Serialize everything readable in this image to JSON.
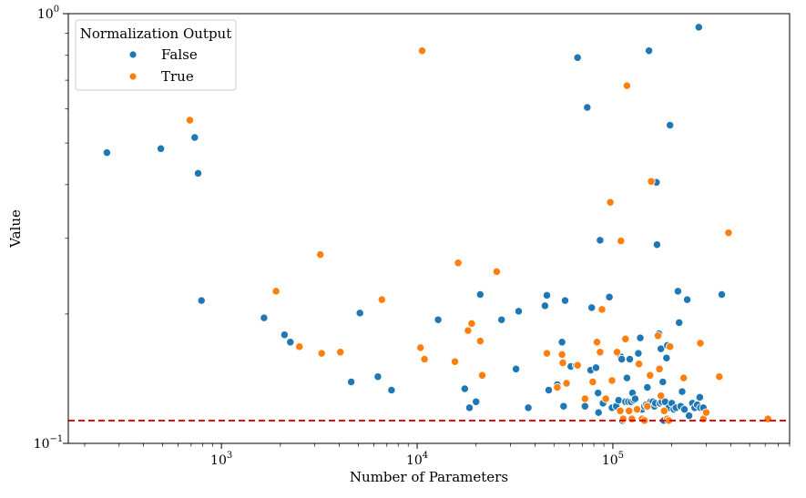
{
  "chart_data": {
    "type": "scatter",
    "title": "",
    "xlabel": "Number of Parameters",
    "ylabel": "Value",
    "xscale": "log",
    "yscale": "log",
    "xlim": [
      165,
      800000
    ],
    "ylim": [
      0.1,
      1.0
    ],
    "x_ticks": [
      {
        "base": "10",
        "exp": "3",
        "value": 1000
      },
      {
        "base": "10",
        "exp": "4",
        "value": 10000
      },
      {
        "base": "10",
        "exp": "5",
        "value": 100000
      }
    ],
    "y_ticks": [
      {
        "base": "10",
        "exp": "−1",
        "value": 0.1
      },
      {
        "base": "10",
        "exp": "0",
        "value": 1.0
      }
    ],
    "grid": false,
    "legend": {
      "title": "Normalization Output",
      "position": "top-left"
    },
    "reference_line": {
      "y": 0.113,
      "color": "#e00000",
      "style": "dashed"
    },
    "series": [
      {
        "name": "False",
        "color": "#1f77b4",
        "points": [
          [
            260,
            0.475
          ],
          [
            490,
            0.485
          ],
          [
            730,
            0.515
          ],
          [
            760,
            0.425
          ],
          [
            790,
            0.215
          ],
          [
            1650,
            0.196
          ],
          [
            2100,
            0.179
          ],
          [
            2250,
            0.172
          ],
          [
            4600,
            0.139
          ],
          [
            5100,
            0.201
          ],
          [
            6300,
            0.143
          ],
          [
            7400,
            0.133
          ],
          [
            12800,
            0.194
          ],
          [
            17500,
            0.134
          ],
          [
            18500,
            0.121
          ],
          [
            20000,
            0.125
          ],
          [
            21000,
            0.222
          ],
          [
            27000,
            0.194
          ],
          [
            32000,
            0.149
          ],
          [
            33000,
            0.203
          ],
          [
            37000,
            0.121
          ],
          [
            45000,
            0.209
          ],
          [
            46000,
            0.221
          ],
          [
            47000,
            0.133
          ],
          [
            52000,
            0.137
          ],
          [
            55000,
            0.172
          ],
          [
            56000,
            0.122
          ],
          [
            57000,
            0.215
          ],
          [
            61000,
            0.151
          ],
          [
            65000,
            0.152
          ],
          [
            66000,
            0.79
          ],
          [
            72000,
            0.122
          ],
          [
            74000,
            0.605
          ],
          [
            77000,
            0.148
          ],
          [
            78000,
            0.207
          ],
          [
            82000,
            0.15
          ],
          [
            84000,
            0.131
          ],
          [
            84500,
            0.118
          ],
          [
            86000,
            0.297
          ],
          [
            89000,
            0.124
          ],
          [
            96000,
            0.219
          ],
          [
            99000,
            0.121
          ],
          [
            104000,
            0.122
          ],
          [
            107000,
            0.126
          ],
          [
            110000,
            0.159
          ],
          [
            111000,
            0.157
          ],
          [
            112000,
            0.113
          ],
          [
            116000,
            0.125
          ],
          [
            118000,
            0.142
          ],
          [
            120000,
            0.125
          ],
          [
            122000,
            0.157
          ],
          [
            124000,
            0.125
          ],
          [
            126000,
            0.131
          ],
          [
            128000,
            0.126
          ],
          [
            130000,
            0.127
          ],
          [
            132000,
            0.12
          ],
          [
            135000,
            0.162
          ],
          [
            138000,
            0.176
          ],
          [
            141000,
            0.12
          ],
          [
            145000,
            0.122
          ],
          [
            148000,
            0.123
          ],
          [
            150000,
            0.135
          ],
          [
            153000,
            0.82
          ],
          [
            156000,
            0.125
          ],
          [
            160000,
            0.125
          ],
          [
            163000,
            0.122
          ],
          [
            165000,
            0.124
          ],
          [
            167000,
            0.405
          ],
          [
            168000,
            0.29
          ],
          [
            172000,
            0.18
          ],
          [
            174000,
            0.124
          ],
          [
            176000,
            0.166
          ],
          [
            178000,
            0.125
          ],
          [
            180000,
            0.139
          ],
          [
            182000,
            0.113
          ],
          [
            185000,
            0.125
          ],
          [
            188000,
            0.158
          ],
          [
            190000,
            0.169
          ],
          [
            193000,
            0.121
          ],
          [
            196000,
            0.55
          ],
          [
            200000,
            0.124
          ],
          [
            205000,
            0.12
          ],
          [
            210000,
            0.121
          ],
          [
            215000,
            0.226
          ],
          [
            218000,
            0.191
          ],
          [
            222000,
            0.122
          ],
          [
            226000,
            0.132
          ],
          [
            232000,
            0.12
          ],
          [
            240000,
            0.216
          ],
          [
            245000,
            0.116
          ],
          [
            255000,
            0.124
          ],
          [
            262000,
            0.121
          ],
          [
            270000,
            0.123
          ],
          [
            275000,
            0.93
          ],
          [
            278000,
            0.128
          ],
          [
            280000,
            0.121
          ],
          [
            290000,
            0.121
          ],
          [
            360000,
            0.222
          ]
        ]
      },
      {
        "name": "True",
        "color": "#ff7f0e",
        "points": [
          [
            690,
            0.565
          ],
          [
            1900,
            0.226
          ],
          [
            2500,
            0.168
          ],
          [
            3200,
            0.275
          ],
          [
            3250,
            0.162
          ],
          [
            4050,
            0.163
          ],
          [
            6600,
            0.216
          ],
          [
            10400,
            0.167
          ],
          [
            10600,
            0.82
          ],
          [
            10900,
            0.157
          ],
          [
            15600,
            0.155
          ],
          [
            16200,
            0.263
          ],
          [
            18200,
            0.183
          ],
          [
            19000,
            0.19
          ],
          [
            21000,
            0.173
          ],
          [
            21500,
            0.144
          ],
          [
            25500,
            0.251
          ],
          [
            46000,
            0.162
          ],
          [
            52000,
            0.135
          ],
          [
            55000,
            0.161
          ],
          [
            55500,
            0.154
          ],
          [
            58000,
            0.138
          ],
          [
            66000,
            0.152
          ],
          [
            72000,
            0.127
          ],
          [
            79000,
            0.139
          ],
          [
            83000,
            0.172
          ],
          [
            86000,
            0.163
          ],
          [
            88000,
            0.205
          ],
          [
            92000,
            0.127
          ],
          [
            97000,
            0.364
          ],
          [
            99000,
            0.14
          ],
          [
            105000,
            0.163
          ],
          [
            109000,
            0.119
          ],
          [
            110000,
            0.296
          ],
          [
            113000,
            0.114
          ],
          [
            116000,
            0.175
          ],
          [
            118000,
            0.68
          ],
          [
            121000,
            0.119
          ],
          [
            125000,
            0.114
          ],
          [
            133000,
            0.12
          ],
          [
            136000,
            0.153
          ],
          [
            141000,
            0.114
          ],
          [
            145000,
            0.113
          ],
          [
            150000,
            0.122
          ],
          [
            155000,
            0.144
          ],
          [
            157000,
            0.407
          ],
          [
            170000,
            0.178
          ],
          [
            173000,
            0.149
          ],
          [
            176000,
            0.129
          ],
          [
            183000,
            0.119
          ],
          [
            190000,
            0.114
          ],
          [
            193000,
            0.113
          ],
          [
            196000,
            0.168
          ],
          [
            230000,
            0.142
          ],
          [
            280000,
            0.171
          ],
          [
            290000,
            0.114
          ],
          [
            300000,
            0.118
          ],
          [
            350000,
            0.143
          ],
          [
            390000,
            0.309
          ],
          [
            620000,
            0.114
          ]
        ]
      }
    ]
  }
}
